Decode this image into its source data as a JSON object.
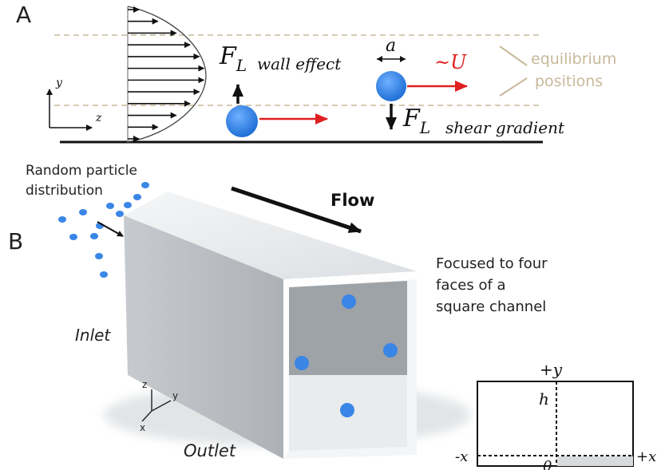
{
  "panel_a": {
    "label": "A",
    "axis_y": "y",
    "axis_z": "z",
    "force_symbol": "F",
    "force_subscript": "L",
    "wall_effect": "wall effect",
    "shear_gradient": "shear gradient",
    "spacing_symbol": "a",
    "velocity_label": "~U",
    "equilibrium_line1": "equilibrium",
    "equilibrium_line2": "positions",
    "colors": {
      "particle": "#2f80e0",
      "velocity_arrow": "#e02020",
      "guide_dash": "#c9b99a",
      "equilibrium_text": "#c8b89a"
    }
  },
  "panel_b": {
    "label": "B",
    "random_line1": "Random particle",
    "random_line2": "distribution",
    "flow": "Flow",
    "focused_line1": "Focused to four",
    "focused_line2": "faces of a",
    "focused_line3": "square channel",
    "inlet": "Inlet",
    "outlet": "Outlet",
    "axis_z": "z",
    "axis_y": "y",
    "axis_x": "x",
    "cross_section": {
      "plus_y": "+y",
      "h": "h",
      "minus_x": "-x",
      "plus_x": "+x",
      "origin": "0"
    },
    "colors": {
      "particle": "#3a86e6",
      "channel_top": "#e9ecef",
      "channel_side": "#b8bcc0"
    }
  }
}
